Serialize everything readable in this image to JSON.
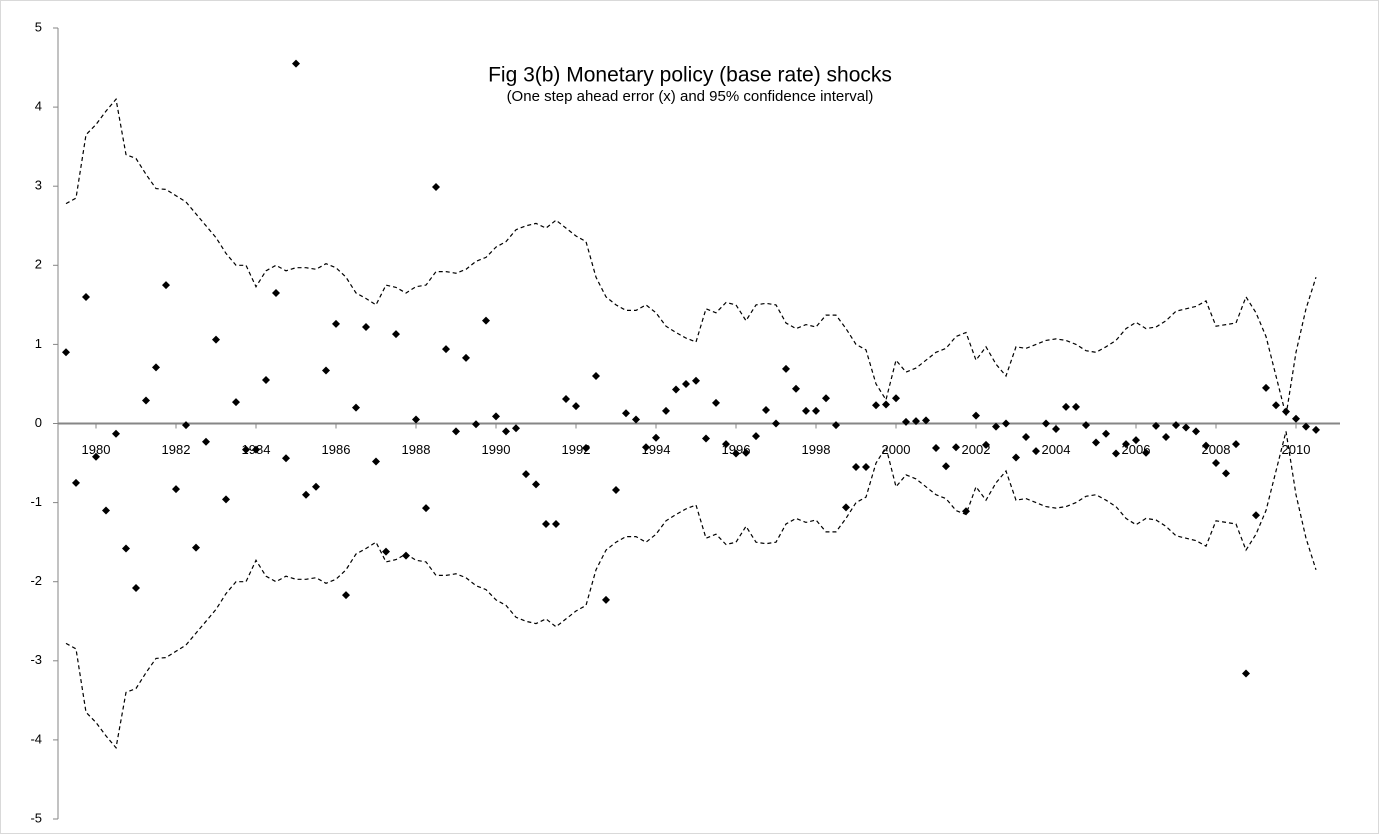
{
  "chart_data": {
    "type": "scatter",
    "title": "Fig 3(b) Monetary policy (base rate) shocks",
    "subtitle": "(One step ahead error (x) and 95% confidence interval)",
    "x": [
      1979.25,
      1979.5,
      1979.75,
      1980,
      1980.25,
      1980.5,
      1980.75,
      1981,
      1981.25,
      1981.5,
      1981.75,
      1982,
      1982.25,
      1982.5,
      1982.75,
      1983,
      1983.25,
      1983.5,
      1983.75,
      1984,
      1984.25,
      1984.5,
      1984.75,
      1985,
      1985.25,
      1985.5,
      1985.75,
      1986,
      1986.25,
      1986.5,
      1986.75,
      1987,
      1987.25,
      1987.5,
      1987.75,
      1988,
      1988.25,
      1988.5,
      1988.75,
      1989,
      1989.25,
      1989.5,
      1989.75,
      1990,
      1990.25,
      1990.5,
      1990.75,
      1991,
      1991.25,
      1991.5,
      1991.75,
      1992,
      1992.25,
      1992.5,
      1992.75,
      1993,
      1993.25,
      1993.5,
      1993.75,
      1994,
      1994.25,
      1994.5,
      1994.75,
      1995,
      1995.25,
      1995.5,
      1995.75,
      1996,
      1996.25,
      1996.5,
      1996.75,
      1997,
      1997.25,
      1997.5,
      1997.75,
      1998,
      1998.25,
      1998.5,
      1998.75,
      1999,
      1999.25,
      1999.5,
      1999.75,
      2000,
      2000.25,
      2000.5,
      2000.75,
      2001,
      2001.25,
      2001.5,
      2001.75,
      2002,
      2002.25,
      2002.5,
      2002.75,
      2003,
      2003.25,
      2003.5,
      2003.75,
      2004,
      2004.25,
      2004.5,
      2004.75,
      2005,
      2005.25,
      2005.5,
      2005.75,
      2006,
      2006.25,
      2006.5,
      2006.75,
      2007,
      2007.25,
      2007.5,
      2007.75,
      2008,
      2008.25,
      2008.5,
      2008.75,
      2009,
      2009.25,
      2009.5,
      2009.75,
      2010,
      2010.25,
      2010.5
    ],
    "series": [
      {
        "kind": "scatter",
        "color": "#000000",
        "values": [
          0.9,
          -0.75,
          1.6,
          -0.42,
          -1.1,
          -0.13,
          -1.58,
          -2.08,
          0.29,
          0.71,
          1.75,
          -0.83,
          -0.02,
          -1.57,
          -0.23,
          1.06,
          -0.96,
          0.27,
          -0.33,
          -0.33,
          0.55,
          1.65,
          -0.44,
          4.55,
          -0.9,
          -0.8,
          0.67,
          1.26,
          -2.17,
          0.2,
          1.22,
          -0.48,
          -1.62,
          1.13,
          -1.67,
          0.05,
          -1.07,
          2.99,
          0.94,
          -0.1,
          0.83,
          -0.01,
          1.3,
          0.09,
          -0.1,
          -0.06,
          -0.64,
          -0.77,
          -1.27,
          -1.27,
          0.31,
          0.22,
          -0.31,
          0.6,
          -2.23,
          -0.84,
          0.13,
          0.05,
          -0.3,
          -0.18,
          0.16,
          0.43,
          0.5,
          0.54,
          -0.19,
          0.26,
          -0.26,
          -0.38,
          -0.37,
          -0.16,
          0.17,
          0.0,
          0.69,
          0.44,
          0.16,
          0.16,
          0.32,
          -0.02,
          -1.06,
          -0.55,
          -0.55,
          0.23,
          0.24,
          0.32,
          0.02,
          0.03,
          0.04,
          -0.31,
          -0.54,
          -0.3,
          -1.11,
          0.1,
          -0.27,
          -0.04,
          0.0,
          -0.43,
          -0.17,
          -0.35,
          0.0,
          -0.07,
          0.21,
          0.21,
          -0.02,
          -0.24,
          -0.13,
          -0.38,
          -0.26,
          -0.21,
          -0.37,
          -0.03,
          -0.17,
          -0.02,
          -0.05,
          -0.1,
          -0.28,
          -0.5,
          -0.63,
          -0.26,
          -3.16,
          -1.16,
          0.45,
          0.23,
          0.15,
          0.06,
          -0.04,
          -0.08
        ]
      },
      {
        "kind": "line",
        "color": "#000000",
        "dash": true,
        "values": [
          2.78,
          2.85,
          3.65,
          3.78,
          3.95,
          4.1,
          3.4,
          3.35,
          3.15,
          2.97,
          2.96,
          2.88,
          2.8,
          2.65,
          2.5,
          2.35,
          2.15,
          2.0,
          2.0,
          1.73,
          1.93,
          2.0,
          1.93,
          1.97,
          1.97,
          1.95,
          2.02,
          1.97,
          1.85,
          1.65,
          1.58,
          1.5,
          1.75,
          1.72,
          1.65,
          1.73,
          1.75,
          1.92,
          1.92,
          1.9,
          1.95,
          2.05,
          2.1,
          2.23,
          2.3,
          2.45,
          2.5,
          2.53,
          2.47,
          2.57,
          2.47,
          2.37,
          2.3,
          1.85,
          1.6,
          1.5,
          1.43,
          1.43,
          1.5,
          1.4,
          1.23,
          1.15,
          1.08,
          1.03,
          1.45,
          1.4,
          1.53,
          1.5,
          1.3,
          1.5,
          1.52,
          1.5,
          1.27,
          1.2,
          1.25,
          1.22,
          1.37,
          1.37,
          1.2,
          1.0,
          0.93,
          0.5,
          0.3,
          0.8,
          0.65,
          0.7,
          0.8,
          0.9,
          0.95,
          1.1,
          1.15,
          0.8,
          0.97,
          0.75,
          0.6,
          0.97,
          0.95,
          1.0,
          1.05,
          1.07,
          1.05,
          1.0,
          0.92,
          0.9,
          0.97,
          1.05,
          1.2,
          1.28,
          1.2,
          1.22,
          1.3,
          1.42,
          1.45,
          1.48,
          1.55,
          1.23,
          1.25,
          1.27,
          1.6,
          1.4,
          1.1,
          0.6,
          0.1,
          0.9,
          1.45,
          1.85
        ]
      },
      {
        "kind": "line",
        "color": "#000000",
        "dash": true,
        "values": [
          -2.78,
          -2.85,
          -3.65,
          -3.78,
          -3.95,
          -4.1,
          -3.4,
          -3.35,
          -3.15,
          -2.97,
          -2.96,
          -2.88,
          -2.8,
          -2.65,
          -2.5,
          -2.35,
          -2.15,
          -2.0,
          -2.0,
          -1.73,
          -1.93,
          -2.0,
          -1.93,
          -1.97,
          -1.97,
          -1.95,
          -2.02,
          -1.97,
          -1.85,
          -1.65,
          -1.58,
          -1.5,
          -1.75,
          -1.72,
          -1.65,
          -1.73,
          -1.75,
          -1.92,
          -1.92,
          -1.9,
          -1.95,
          -2.05,
          -2.1,
          -2.23,
          -2.3,
          -2.45,
          -2.5,
          -2.53,
          -2.47,
          -2.57,
          -2.47,
          -2.37,
          -2.3,
          -1.85,
          -1.6,
          -1.5,
          -1.43,
          -1.43,
          -1.5,
          -1.4,
          -1.23,
          -1.15,
          -1.08,
          -1.03,
          -1.45,
          -1.4,
          -1.53,
          -1.5,
          -1.3,
          -1.5,
          -1.52,
          -1.5,
          -1.27,
          -1.2,
          -1.25,
          -1.22,
          -1.37,
          -1.37,
          -1.2,
          -1.0,
          -0.93,
          -0.5,
          -0.3,
          -0.8,
          -0.65,
          -0.7,
          -0.8,
          -0.9,
          -0.95,
          -1.1,
          -1.15,
          -0.8,
          -0.97,
          -0.75,
          -0.6,
          -0.97,
          -0.95,
          -1.0,
          -1.05,
          -1.07,
          -1.05,
          -1.0,
          -0.92,
          -0.9,
          -0.97,
          -1.05,
          -1.2,
          -1.28,
          -1.2,
          -1.22,
          -1.3,
          -1.42,
          -1.45,
          -1.48,
          -1.55,
          -1.23,
          -1.25,
          -1.27,
          -1.6,
          -1.4,
          -1.1,
          -0.6,
          -0.1,
          -0.9,
          -1.45,
          -1.85
        ]
      }
    ],
    "xlim": [
      1979,
      2011
    ],
    "xticks": [
      1980,
      1982,
      1984,
      1986,
      1988,
      1990,
      1992,
      1994,
      1996,
      1998,
      2000,
      2002,
      2004,
      2006,
      2008,
      2010
    ],
    "ylim": [
      -5,
      5
    ],
    "yticks": [
      -5,
      -4,
      -3,
      -2,
      -1,
      0,
      1,
      2,
      3,
      4,
      5
    ]
  }
}
